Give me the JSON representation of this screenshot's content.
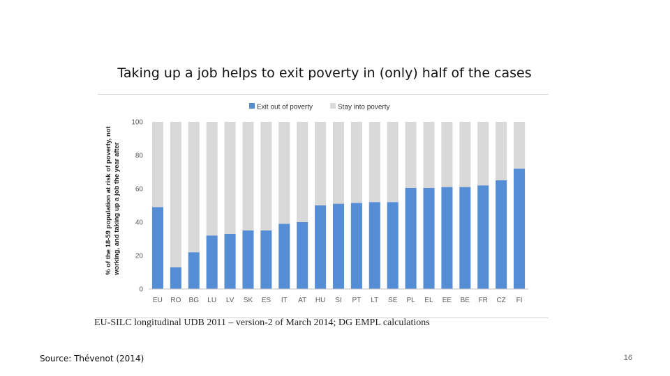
{
  "slide": {
    "title": "Taking up a job helps to exit poverty in (only) half of the cases",
    "figure_source": "EU-SILC longitudinal UDB 2011 – version-2 of March 2014; DG EMPL calculations",
    "footer_source": "Source: Thévenot (2014)",
    "page_number": "16"
  },
  "chart_data": {
    "type": "bar",
    "stacked": true,
    "title": "",
    "xlabel": "",
    "ylabel": "% of the 18-59 population at risk of poverty, not working, and taking up a job the year after",
    "ylim": [
      0,
      100
    ],
    "yticks": [
      0,
      20,
      40,
      60,
      80,
      100
    ],
    "grid": false,
    "legend_position": "top",
    "categories": [
      "EU",
      "RO",
      "BG",
      "LU",
      "LV",
      "SK",
      "ES",
      "IT",
      "AT",
      "HU",
      "SI",
      "PT",
      "LT",
      "SE",
      "PL",
      "EL",
      "EE",
      "BE",
      "FR",
      "CZ",
      "FI"
    ],
    "series": [
      {
        "name": "Exit out of poverty",
        "color": "#558ed5",
        "values": [
          49,
          13,
          22,
          32,
          33,
          35,
          35,
          39,
          40,
          50,
          51,
          51.5,
          52,
          52,
          60.5,
          60.5,
          61,
          61,
          62,
          65,
          72
        ]
      },
      {
        "name": "Stay into poverty",
        "color": "#d9d9d9",
        "values": [
          51,
          87,
          78,
          68,
          67,
          65,
          65,
          61,
          60,
          50,
          49,
          48.5,
          48,
          48,
          39.5,
          39.5,
          39,
          39,
          38,
          35,
          28
        ]
      }
    ]
  }
}
